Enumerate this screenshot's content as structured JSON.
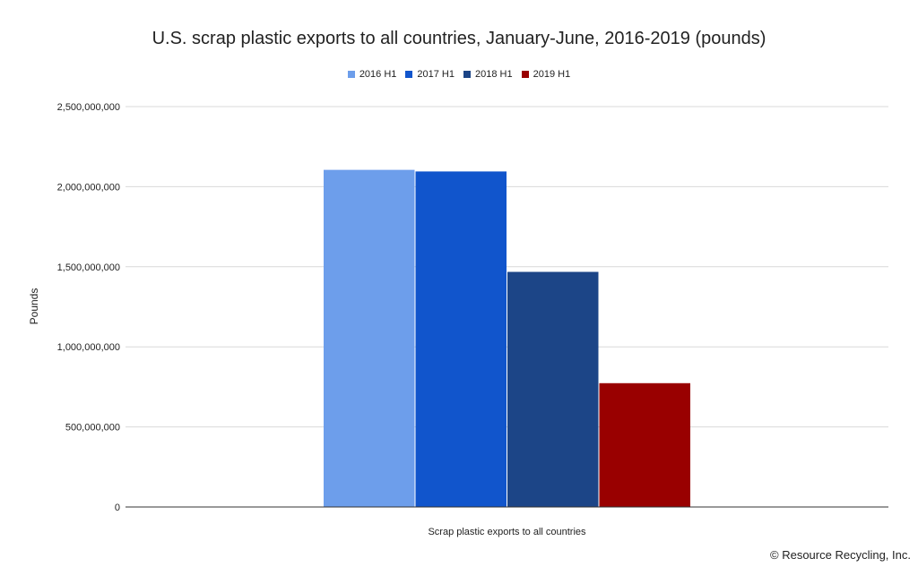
{
  "chart_data": {
    "type": "bar",
    "title": "U.S. scrap plastic exports to all countries, January-June, 2016-2019 (pounds)",
    "xlabel": "Scrap plastic exports to all countries",
    "ylabel": "Pounds",
    "ylim": [
      0,
      2500000000
    ],
    "yticks": [
      {
        "value": 0,
        "label": "0"
      },
      {
        "value": 500000000,
        "label": "500,000,000"
      },
      {
        "value": 1000000000,
        "label": "1,000,000,000"
      },
      {
        "value": 1500000000,
        "label": "1,500,000,000"
      },
      {
        "value": 2000000000,
        "label": "2,000,000,000"
      },
      {
        "value": 2500000000,
        "label": "2,500,000,000"
      }
    ],
    "categories": [
      "Scrap plastic exports to all countries"
    ],
    "series": [
      {
        "name": "2016 H1",
        "color": "#6d9eeb",
        "values": [
          2105000000
        ]
      },
      {
        "name": "2017 H1",
        "color": "#1155cc",
        "values": [
          2095000000
        ]
      },
      {
        "name": "2018 H1",
        "color": "#1c4587",
        "values": [
          1468000000
        ]
      },
      {
        "name": "2019 H1",
        "color": "#990000",
        "values": [
          773000000
        ]
      }
    ],
    "grid": true,
    "legend_position": "top"
  },
  "footer": {
    "copyright": "© Resource Recycling, Inc."
  }
}
